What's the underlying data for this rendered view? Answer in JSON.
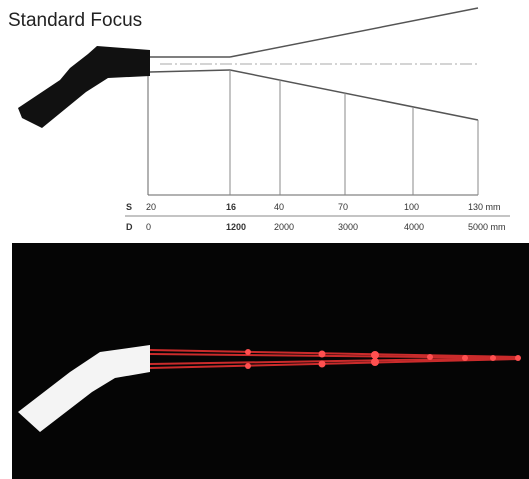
{
  "header": {
    "title": "Standard Focus"
  },
  "table": {
    "rows": [
      [
        "S",
        "20",
        "16",
        "40",
        "70",
        "100",
        "130 mm"
      ],
      [
        "D",
        "0",
        "1200",
        "2000",
        "3000",
        "4000",
        "5000 mm"
      ]
    ]
  }
}
